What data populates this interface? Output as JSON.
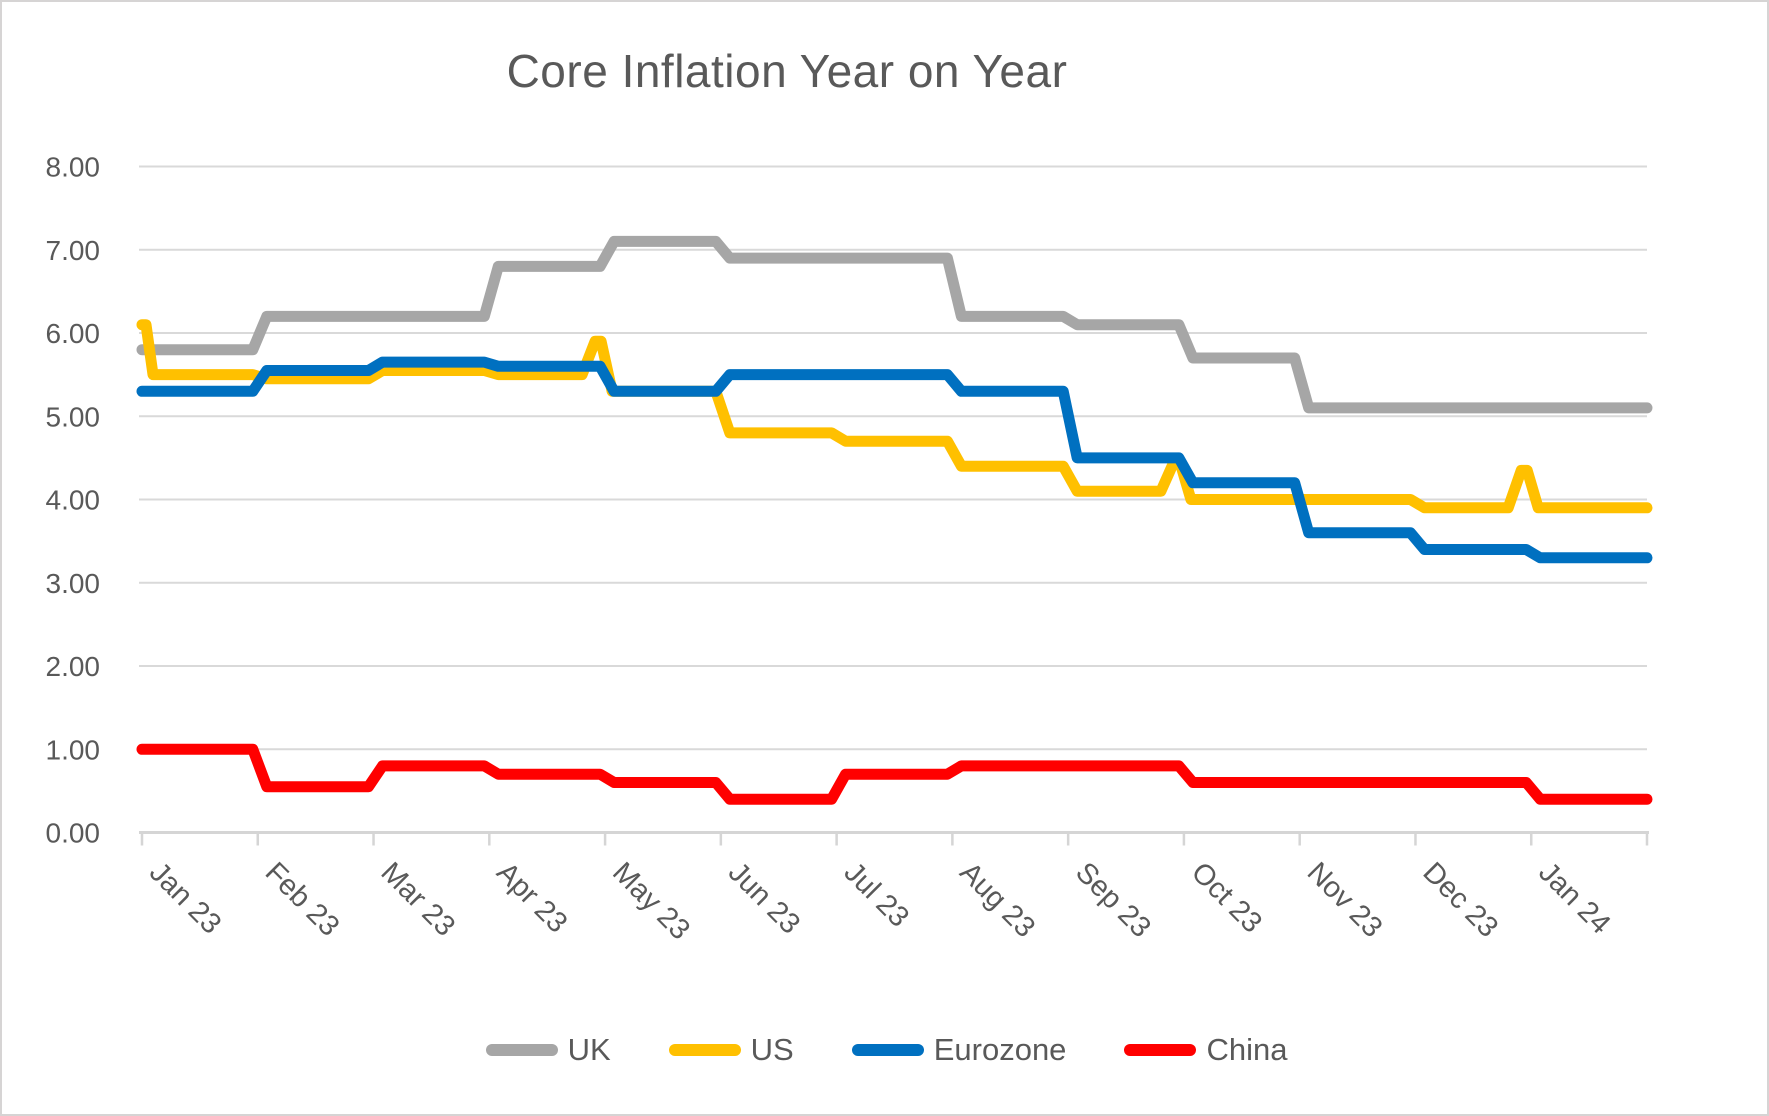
{
  "window": {
    "background": "#ffffff",
    "border_color": "#d6d4d4"
  },
  "text_color": "#595959",
  "gridline_color": "#d9d9d9",
  "axis_line_color": "#d5d5d5",
  "chart_data": {
    "type": "line",
    "line_style": "step",
    "title": "Core Inflation Year on Year",
    "xlabel": "",
    "ylabel": "",
    "ylim": [
      0,
      8
    ],
    "grid": "horizontal",
    "legend_position": "bottom",
    "y_tick_labels": [
      "0.00",
      "1.00",
      "2.00",
      "3.00",
      "4.00",
      "5.00",
      "6.00",
      "7.00",
      "8.00"
    ],
    "categories": [
      "Jan 23",
      "Feb 23",
      "Mar 23",
      "Apr 23",
      "May 23",
      "Jun 23",
      "Jul 23",
      "Aug 23",
      "Sep 23",
      "Oct 23",
      "Nov 23",
      "Dec 23",
      "Jan 24"
    ],
    "series": [
      {
        "name": "UK",
        "color": "#a6a6a6",
        "values": [
          5.8,
          6.2,
          6.2,
          6.8,
          7.1,
          6.9,
          6.9,
          6.2,
          6.1,
          5.7,
          5.1,
          5.1,
          5.1
        ]
      },
      {
        "name": "US",
        "color": "#ffc000",
        "values": [
          5.5,
          5.45,
          5.55,
          5.5,
          5.3,
          4.8,
          4.7,
          4.4,
          4.1,
          4.0,
          4.0,
          3.9,
          3.9
        ],
        "spikes": [
          {
            "month": "Jan 23",
            "peak": 6.1
          },
          {
            "month": "May 23",
            "peak": 5.9
          },
          {
            "month": "Oct 23",
            "peak": 4.45
          },
          {
            "month": "Jan 24",
            "peak": 4.35
          }
        ]
      },
      {
        "name": "Eurozone",
        "color": "#0070c0",
        "values": [
          5.3,
          5.55,
          5.65,
          5.6,
          5.3,
          5.5,
          5.5,
          5.3,
          4.5,
          4.2,
          3.6,
          3.4,
          3.3
        ]
      },
      {
        "name": "China",
        "color": "#ff0000",
        "values": [
          1.0,
          0.55,
          0.8,
          0.7,
          0.6,
          0.4,
          0.7,
          0.8,
          0.8,
          0.6,
          0.6,
          0.6,
          0.4
        ]
      }
    ]
  }
}
